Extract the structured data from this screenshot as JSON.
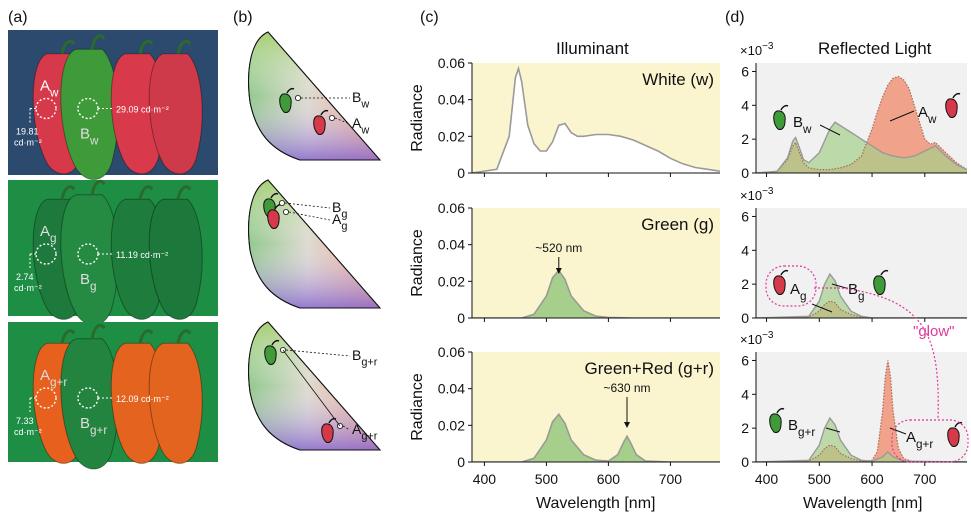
{
  "panels": {
    "a": {
      "label": "(a)"
    },
    "b": {
      "label": "(b)"
    },
    "c": {
      "label": "(c)",
      "title": "Illuminant"
    },
    "d": {
      "label": "(d)",
      "title": "Reflected Light"
    }
  },
  "photos": [
    {
      "row": "white",
      "bg": "#2c4a6e",
      "a_label": "A",
      "a_sub": "w",
      "b_label": "B",
      "b_sub": "w",
      "a_lum": "19.81",
      "a_lum_unit": "cd·m⁻²",
      "b_lum": "29.09 cd·m⁻²",
      "pepper_colors": [
        "#d63a4a",
        "#3f9a3a",
        "#d83a4c",
        "#cf3a4a"
      ]
    },
    {
      "row": "green",
      "bg": "#1f8e45",
      "a_label": "A",
      "a_sub": "g",
      "b_label": "B",
      "b_sub": "g",
      "a_lum": "2.74",
      "a_lum_unit": "cd·m⁻²",
      "b_lum": "11.19 cd·m⁻²",
      "pepper_colors": [
        "#1d7a3c",
        "#258a42",
        "#1e7c3d",
        "#1c783b"
      ]
    },
    {
      "row": "green+red",
      "bg": "#1f8e45",
      "a_label": "A",
      "a_sub": "g+r",
      "b_label": "B",
      "b_sub": "g+r",
      "a_lum": "7.33",
      "a_lum_unit": "cd·m⁻²",
      "b_lum": "12.09 cd·m⁻²",
      "pepper_colors": [
        "#e8601e",
        "#23843f",
        "#e4631f",
        "#e3641e"
      ]
    }
  ],
  "chromaticity": [
    {
      "b_label": "B",
      "b_sub": "w",
      "a_label": "A",
      "a_sub": "w"
    },
    {
      "b_label": "B",
      "b_sub": "g",
      "a_label": "A",
      "a_sub": "g"
    },
    {
      "b_label": "B",
      "b_sub": "g+r",
      "a_label": "A",
      "a_sub": "g+r"
    }
  ],
  "axes": {
    "xlabel": "Wavelength [nm]",
    "ylabel_c": "Radiance",
    "xticks": [
      "400",
      "500",
      "600",
      "700"
    ],
    "yticks_c": [
      "0",
      "0.02",
      "0.04",
      "0.06"
    ],
    "yticks_d": [
      "0",
      "2",
      "4",
      "6"
    ],
    "exp_prefix": "×10",
    "exp_power": "−3"
  },
  "annotations": {
    "peak_520": "~520 nm",
    "peak_630": "~630 nm",
    "glow": "\"glow\""
  },
  "colors": {
    "illuminant_bg": "#faf5cf",
    "reflect_bg": "#f1f1f1",
    "green_fill": "#a5cf8a",
    "red_fill": "#f09a7e",
    "outline": "#9a9a9a",
    "glow": "#e0389a"
  },
  "chart_data": [
    {
      "type": "line",
      "title": "Illuminant",
      "ylabel": "Radiance",
      "xlabel": "Wavelength [nm]",
      "xlim": [
        380,
        780
      ],
      "ylim": [
        0,
        0.06
      ],
      "series": [
        {
          "name": "White (w)",
          "x": [
            380,
            420,
            440,
            450,
            455,
            460,
            470,
            480,
            490,
            500,
            510,
            520,
            530,
            540,
            550,
            560,
            580,
            600,
            620,
            640,
            660,
            680,
            700,
            720,
            740,
            760,
            780
          ],
          "values": [
            0,
            0.002,
            0.02,
            0.052,
            0.057,
            0.05,
            0.026,
            0.016,
            0.012,
            0.012,
            0.017,
            0.026,
            0.027,
            0.022,
            0.02,
            0.02,
            0.021,
            0.021,
            0.02,
            0.018,
            0.015,
            0.012,
            0.008,
            0.005,
            0.003,
            0.002,
            0.001
          ]
        },
        {
          "name": "Green (g)",
          "x": [
            380,
            460,
            480,
            500,
            510,
            520,
            530,
            540,
            560,
            580,
            600,
            640,
            700,
            780
          ],
          "values": [
            0,
            0,
            0.002,
            0.012,
            0.022,
            0.026,
            0.021,
            0.012,
            0.004,
            0.001,
            0.0003,
            0,
            0,
            0
          ]
        },
        {
          "name": "Green+Red (g+r)",
          "x": [
            380,
            460,
            480,
            500,
            510,
            520,
            530,
            540,
            560,
            580,
            600,
            615,
            625,
            630,
            635,
            645,
            660,
            700,
            780
          ],
          "values": [
            0,
            0,
            0.002,
            0.012,
            0.022,
            0.026,
            0.021,
            0.012,
            0.004,
            0.001,
            0.0005,
            0.004,
            0.011,
            0.014,
            0.011,
            0.004,
            0.0005,
            0,
            0
          ]
        }
      ]
    },
    {
      "type": "area",
      "title": "Reflected Light",
      "xlabel": "Wavelength [nm]",
      "xlim": [
        380,
        780
      ],
      "ylim": [
        0,
        6.5
      ],
      "series": [
        {
          "name": "B w",
          "x": [
            380,
            420,
            440,
            450,
            455,
            460,
            470,
            480,
            500,
            520,
            530,
            540,
            560,
            580,
            600,
            620,
            640,
            660,
            680,
            700,
            720,
            740,
            760,
            780
          ],
          "values": [
            0,
            0.1,
            0.9,
            1.9,
            2.1,
            1.7,
            0.8,
            0.6,
            1.2,
            2.6,
            3.0,
            2.8,
            2.4,
            2.0,
            1.6,
            1.2,
            1.0,
            0.9,
            1.0,
            1.3,
            1.6,
            1.0,
            0.5,
            0.2
          ]
        },
        {
          "name": "A w",
          "x": [
            380,
            420,
            440,
            450,
            455,
            460,
            470,
            480,
            500,
            520,
            540,
            560,
            580,
            600,
            610,
            620,
            630,
            640,
            650,
            660,
            670,
            680,
            690,
            700,
            710,
            720,
            740,
            760,
            780
          ],
          "values": [
            0,
            0.1,
            0.8,
            1.6,
            1.8,
            1.4,
            0.6,
            0.3,
            0.2,
            0.2,
            0.3,
            0.5,
            1.0,
            2.6,
            3.6,
            4.5,
            5.2,
            5.6,
            5.7,
            5.5,
            5.0,
            4.0,
            3.0,
            2.0,
            1.7,
            1.8,
            1.2,
            0.6,
            0.2
          ]
        },
        {
          "name": "B g",
          "x": [
            380,
            480,
            500,
            510,
            520,
            530,
            540,
            560,
            580,
            600,
            780
          ],
          "values": [
            0,
            0.1,
            1.0,
            2.0,
            2.6,
            2.2,
            1.3,
            0.4,
            0.1,
            0,
            0
          ]
        },
        {
          "name": "A g",
          "x": [
            380,
            480,
            500,
            510,
            520,
            530,
            540,
            560,
            580,
            600,
            780
          ],
          "values": [
            0,
            0.05,
            0.4,
            0.8,
            1.0,
            0.9,
            0.5,
            0.2,
            0.05,
            0,
            0
          ]
        },
        {
          "name": "B g+r",
          "x": [
            380,
            480,
            500,
            510,
            520,
            530,
            540,
            560,
            580,
            600,
            620,
            630,
            640,
            660,
            780
          ],
          "values": [
            0,
            0.1,
            1.0,
            2.0,
            2.6,
            2.2,
            1.3,
            0.4,
            0.1,
            0.05,
            0.3,
            0.6,
            0.3,
            0.05,
            0
          ]
        },
        {
          "name": "A g+r",
          "x": [
            380,
            480,
            500,
            510,
            520,
            530,
            540,
            560,
            580,
            600,
            610,
            620,
            625,
            630,
            635,
            640,
            650,
            660,
            680,
            780
          ],
          "values": [
            0,
            0.05,
            0.4,
            0.8,
            1.0,
            0.9,
            0.5,
            0.2,
            0.05,
            0.1,
            0.6,
            3.0,
            5.0,
            6.0,
            5.0,
            3.0,
            0.8,
            0.2,
            0,
            0
          ]
        }
      ]
    }
  ]
}
